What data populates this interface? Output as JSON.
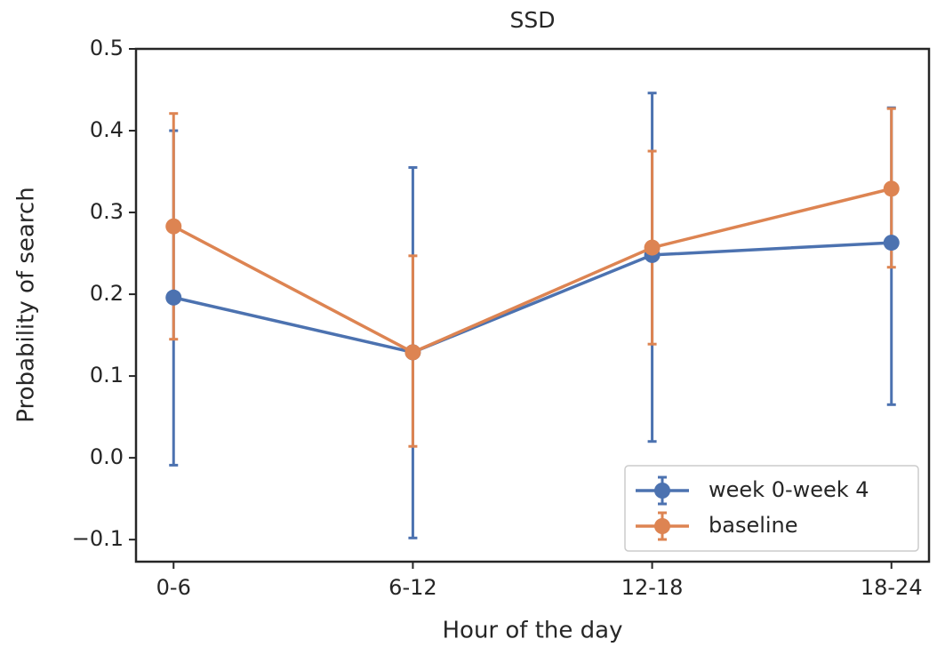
{
  "chart_data": {
    "type": "line",
    "title": "SSD",
    "x_label": "Hour of the day",
    "y_label": "Probability of search",
    "categories": [
      "0-6",
      "6-12",
      "12-18",
      "18-24"
    ],
    "series": [
      {
        "name": "week 0-week 4",
        "color": "#4c72b0",
        "values": [
          0.196,
          0.129,
          0.248,
          0.263
        ],
        "ci_low": [
          -0.009,
          -0.098,
          0.02,
          0.065
        ],
        "ci_high": [
          0.4,
          0.355,
          0.446,
          0.428
        ]
      },
      {
        "name": "baseline",
        "color": "#dd8452",
        "values": [
          0.283,
          0.129,
          0.257,
          0.329
        ],
        "ci_low": [
          0.145,
          0.014,
          0.139,
          0.233
        ],
        "ci_high": [
          0.421,
          0.247,
          0.375,
          0.427
        ]
      }
    ],
    "ylim": [
      -0.127,
      0.5
    ],
    "yticks": [
      {
        "value": -0.1,
        "label": "−0.1"
      },
      {
        "value": 0,
        "label": "0.0"
      },
      0.1,
      0.2,
      0.3,
      0.4,
      0.5
    ],
    "legend": "lower right",
    "grid": false
  }
}
